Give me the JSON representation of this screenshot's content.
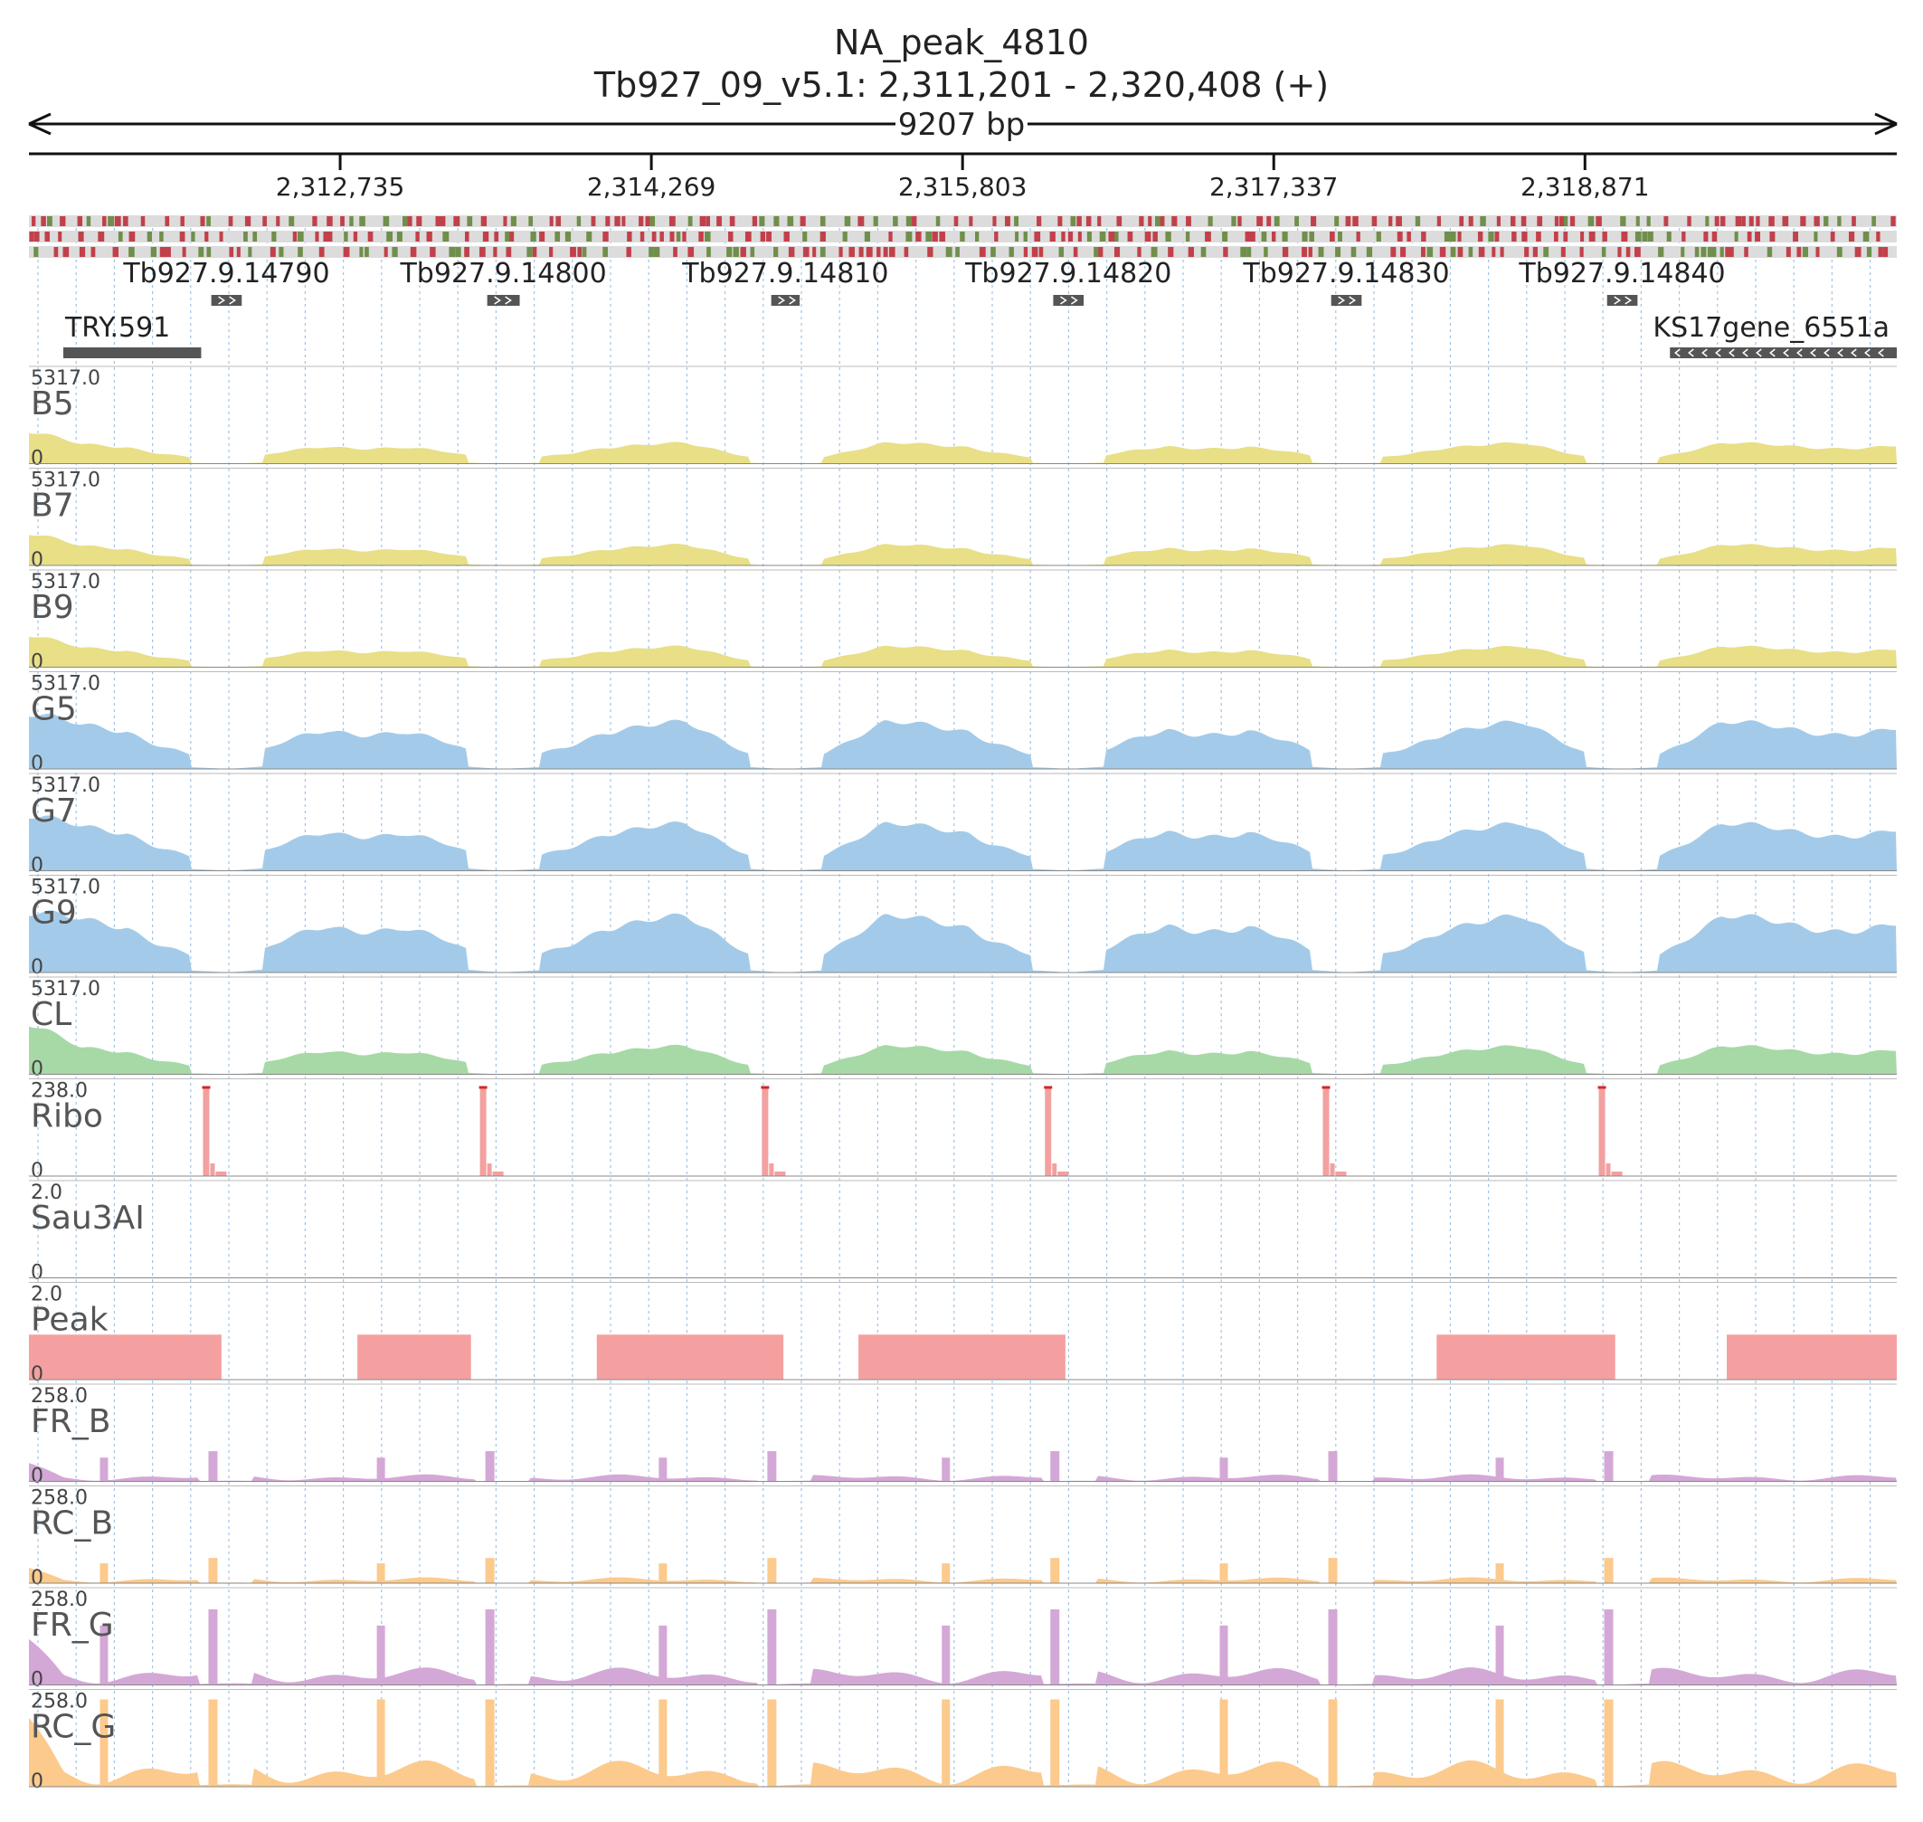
{
  "header": {
    "title": "NA_peak_4810",
    "locus": "Tb927_09_v5.1: 2,311,201 - 2,320,408 (+)",
    "span": "9207 bp"
  },
  "ruler": {
    "start": 2311201,
    "end": 2320408,
    "ticks": [
      {
        "pos": 2312735,
        "label": "2,312,735"
      },
      {
        "pos": 2314269,
        "label": "2,314,269"
      },
      {
        "pos": 2315803,
        "label": "2,315,803"
      },
      {
        "pos": 2317337,
        "label": "2,317,337"
      },
      {
        "pos": 2318871,
        "label": "2,318,871"
      }
    ]
  },
  "colors": {
    "bloodstream": "#e8df87",
    "procyclic": "#a3cbe9",
    "cl": "#a6d9a6",
    "ribo": "#f2a0a0",
    "peak": "#f5a0a0",
    "fr": "#d4a8d6",
    "rc": "#fcca8c",
    "gene": "#555555",
    "frame_green": "#6f8f4a",
    "frame_red": "#c2404a"
  },
  "genes": [
    {
      "name": "Tb927.9.14790",
      "start": 2312100,
      "end": 2312250,
      "strand": "+"
    },
    {
      "name": "Tb927.9.14800",
      "start": 2313460,
      "end": 2313620,
      "strand": "+"
    },
    {
      "name": "Tb927.9.14810",
      "start": 2314860,
      "end": 2315000,
      "strand": "+"
    },
    {
      "name": "Tb927.9.14820",
      "start": 2316250,
      "end": 2316400,
      "strand": "+"
    },
    {
      "name": "Tb927.9.14830",
      "start": 2317620,
      "end": 2317770,
      "strand": "+"
    },
    {
      "name": "Tb927.9.14840",
      "start": 2318980,
      "end": 2319130,
      "strand": "+"
    }
  ],
  "features": [
    {
      "name": "TRY.591",
      "start": 2311290,
      "end": 2312050,
      "strand": "."
    },
    {
      "name": "KS17gene_6551a",
      "start": 2319290,
      "end": 2320408,
      "strand": "-"
    }
  ],
  "tracks": [
    {
      "name": "B5",
      "max": "5317.0",
      "min": "0",
      "type": "coverage",
      "color": "bloodstream",
      "amp": 0.22,
      "edge": 0.35
    },
    {
      "name": "B7",
      "max": "5317.0",
      "min": "0",
      "type": "coverage",
      "color": "bloodstream",
      "amp": 0.22,
      "edge": 0.35
    },
    {
      "name": "B9",
      "max": "5317.0",
      "min": "0",
      "type": "coverage",
      "color": "bloodstream",
      "amp": 0.22,
      "edge": 0.35
    },
    {
      "name": "G5",
      "max": "5317.0",
      "min": "0",
      "type": "coverage",
      "color": "procyclic",
      "amp": 0.5,
      "edge": 0.6
    },
    {
      "name": "G7",
      "max": "5317.0",
      "min": "0",
      "type": "coverage",
      "color": "procyclic",
      "amp": 0.5,
      "edge": 0.6
    },
    {
      "name": "G9",
      "max": "5317.0",
      "min": "0",
      "type": "coverage",
      "color": "procyclic",
      "amp": 0.6,
      "edge": 0.65
    },
    {
      "name": "CL",
      "max": "5317.0",
      "min": "0",
      "type": "coverage",
      "color": "cl",
      "amp": 0.3,
      "edge": 0.55
    },
    {
      "name": "Ribo",
      "max": "238.0",
      "min": "0",
      "type": "ribo",
      "color": "ribo"
    },
    {
      "name": "Sau3AI",
      "max": "2.0",
      "min": "0",
      "type": "empty",
      "color": "ribo"
    },
    {
      "name": "Peak",
      "max": "2.0",
      "min": "0",
      "type": "peak",
      "color": "peak",
      "peaks": [
        [
          2311201,
          2312150
        ],
        [
          2312820,
          2313380
        ],
        [
          2314000,
          2314920
        ],
        [
          2315290,
          2316310
        ],
        [
          2318140,
          2319020
        ],
        [
          2319570,
          2320408
        ]
      ]
    },
    {
      "name": "FR_B",
      "max": "258.0",
      "min": "0",
      "type": "frag",
      "color": "fr",
      "amp": 0.12
    },
    {
      "name": "RC_B",
      "max": "258.0",
      "min": "0",
      "type": "frag",
      "color": "rc",
      "amp": 0.1
    },
    {
      "name": "FR_G",
      "max": "258.0",
      "min": "0",
      "type": "frag",
      "color": "fr",
      "amp": 0.3
    },
    {
      "name": "RC_G",
      "max": "258.0",
      "min": "0",
      "type": "frag",
      "color": "rc",
      "amp": 0.45
    }
  ]
}
